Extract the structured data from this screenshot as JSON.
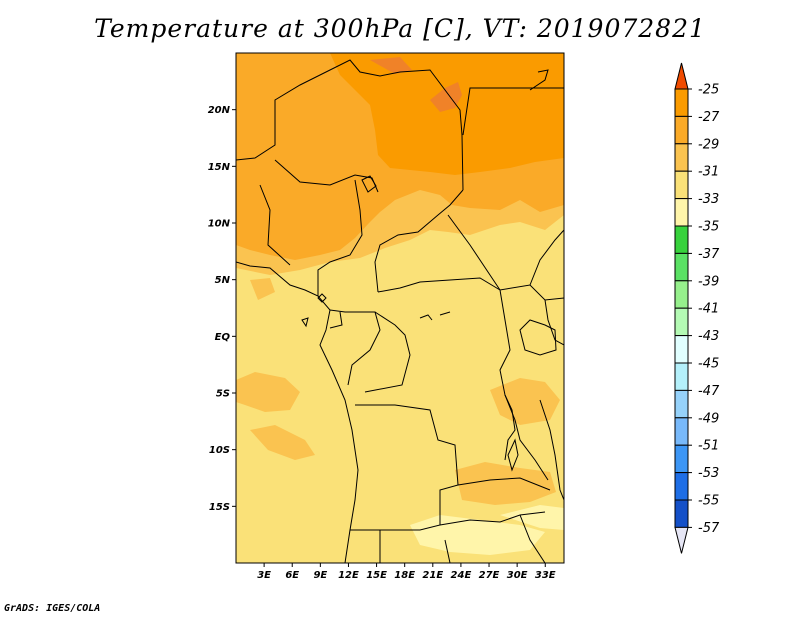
{
  "title": "Temperature at 300hPa [C], VT: 2019072821",
  "credit": "GrADS: IGES/COLA",
  "map": {
    "lon_range": [
      0,
      35
    ],
    "lat_range": [
      -20,
      25
    ],
    "lat_ticks": [
      {
        "value": 20,
        "label": "20N"
      },
      {
        "value": 15,
        "label": "15N"
      },
      {
        "value": 10,
        "label": "10N"
      },
      {
        "value": 5,
        "label": "5N"
      },
      {
        "value": 0,
        "label": "EQ"
      },
      {
        "value": -5,
        "label": "5S"
      },
      {
        "value": -10,
        "label": "10S"
      },
      {
        "value": -15,
        "label": "15S"
      }
    ],
    "lon_ticks": [
      {
        "value": 3,
        "label": "3E"
      },
      {
        "value": 6,
        "label": "6E"
      },
      {
        "value": 9,
        "label": "9E"
      },
      {
        "value": 12,
        "label": "12E"
      },
      {
        "value": 15,
        "label": "15E"
      },
      {
        "value": 18,
        "label": "18E"
      },
      {
        "value": 21,
        "label": "21E"
      },
      {
        "value": 24,
        "label": "24E"
      },
      {
        "value": 27,
        "label": "27E"
      },
      {
        "value": 30,
        "label": "30E"
      },
      {
        "value": 33,
        "label": "33E"
      }
    ]
  },
  "legend": {
    "levels": [
      "-25",
      "-27",
      "-29",
      "-31",
      "-33",
      "-35",
      "-37",
      "-39",
      "-41",
      "-43",
      "-45",
      "-47",
      "-49",
      "-51",
      "-53",
      "-55",
      "-57"
    ],
    "colors": [
      "#f08228",
      "#fa9b00",
      "#faaa28",
      "#fac350",
      "#fae178",
      "#fff5aa",
      "#37d23c",
      "#5ae164",
      "#96f08c",
      "#b4fab4",
      "#e1ffff",
      "#b4f0fa",
      "#96d2fa",
      "#78b9fa",
      "#3c96f5",
      "#1e6ee6",
      "#1450c8",
      "#0a1478"
    ],
    "top_color": "#f04b00",
    "bottom_color": "#e6e6f5"
  }
}
